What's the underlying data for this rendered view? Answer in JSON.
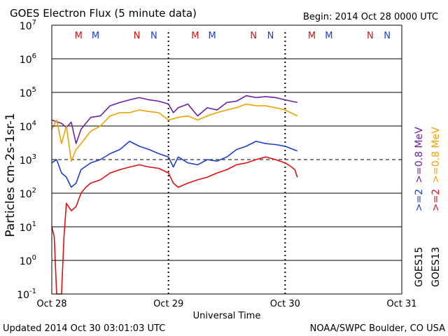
{
  "header": {
    "title": "GOES Electron Flux (5 minute data)",
    "begin": "Begin: 2014 Oct 28 0000 UTC"
  },
  "footer": {
    "updated": "Updated 2014 Oct 30 03:01:03 UTC",
    "credit": "NOAA/SWPC Boulder, CO USA"
  },
  "chart_data": {
    "type": "line",
    "title": "GOES Electron Flux (5 minute data)",
    "xlabel": "Universal Time",
    "ylabel": "Particles cm-2s-1sr-1",
    "yscale": "log",
    "ylim": [
      0.1,
      10000000
    ],
    "xlim": [
      "2014-10-28 00:00",
      "2014-10-31 00:00"
    ],
    "x_ticks": [
      "Oct 28",
      "Oct 29",
      "Oct 30",
      "Oct 31"
    ],
    "y_ticks": [
      "10-1",
      "100",
      "101",
      "102",
      "103",
      "104",
      "105",
      "106",
      "107"
    ],
    "grid": true,
    "threshold_line": 1000,
    "legend": {
      "placement": "right, vertical",
      "columns": [
        {
          "sat": "GOES15",
          "entries": [
            {
              "label": ">=2",
              "color": "#1a3fcc"
            },
            {
              "label": ">=0.8 MeV",
              "color": "#6a1fa5"
            }
          ]
        },
        {
          "sat": "GOES13",
          "entries": [
            {
              "label": ">=2",
              "color": "#e01010"
            },
            {
              "label": ">=0.8 MeV",
              "color": "#f0a000"
            }
          ]
        }
      ]
    },
    "mn_markers": [
      {
        "label": "M",
        "color": "#e01010",
        "time": "2014-10-28 05:30"
      },
      {
        "label": "M",
        "color": "#1a3fcc",
        "time": "2014-10-28 09:00"
      },
      {
        "label": "N",
        "color": "#e01010",
        "time": "2014-10-28 17:30"
      },
      {
        "label": "N",
        "color": "#1a3fcc",
        "time": "2014-10-28 21:00"
      },
      {
        "label": "M",
        "color": "#e01010",
        "time": "2014-10-29 05:30"
      },
      {
        "label": "M",
        "color": "#1a3fcc",
        "time": "2014-10-29 09:00"
      },
      {
        "label": "N",
        "color": "#e01010",
        "time": "2014-10-29 17:30"
      },
      {
        "label": "N",
        "color": "#1a3fcc",
        "time": "2014-10-29 21:00"
      },
      {
        "label": "M",
        "color": "#e01010",
        "time": "2014-10-30 05:30"
      },
      {
        "label": "M",
        "color": "#1a3fcc",
        "time": "2014-10-30 09:00"
      },
      {
        "label": "N",
        "color": "#e01010",
        "time": "2014-10-30 17:30"
      },
      {
        "label": "N",
        "color": "#1a3fcc",
        "time": "2014-10-30 21:00"
      }
    ],
    "series": [
      {
        "name": "GOES15 >=0.8 MeV",
        "color": "#6a1fa5",
        "x": [
          "2014-10-28 00:00",
          "2014-10-28 02:00",
          "2014-10-28 03:00",
          "2014-10-28 04:00",
          "2014-10-28 05:00",
          "2014-10-28 06:00",
          "2014-10-28 08:00",
          "2014-10-28 10:00",
          "2014-10-28 12:00",
          "2014-10-28 14:00",
          "2014-10-28 16:00",
          "2014-10-28 18:00",
          "2014-10-28 20:00",
          "2014-10-28 22:00",
          "2014-10-29 00:00",
          "2014-10-29 01:00",
          "2014-10-29 02:00",
          "2014-10-29 04:00",
          "2014-10-29 06:00",
          "2014-10-29 08:00",
          "2014-10-29 10:00",
          "2014-10-29 12:00",
          "2014-10-29 14:00",
          "2014-10-29 16:00",
          "2014-10-29 18:00",
          "2014-10-29 20:00",
          "2014-10-29 22:00",
          "2014-10-30 00:00",
          "2014-10-30 02:30"
        ],
        "y": [
          15000,
          12000,
          9000,
          13000,
          3000,
          8000,
          18000,
          20000,
          40000,
          50000,
          60000,
          70000,
          60000,
          55000,
          45000,
          25000,
          35000,
          45000,
          20000,
          35000,
          30000,
          50000,
          55000,
          80000,
          70000,
          75000,
          70000,
          60000,
          50000
        ]
      },
      {
        "name": "GOES13 >=0.8 MeV",
        "color": "#f0a000",
        "x": [
          "2014-10-28 00:00",
          "2014-10-28 01:00",
          "2014-10-28 02:00",
          "2014-10-28 03:00",
          "2014-10-28 04:00",
          "2014-10-28 05:00",
          "2014-10-28 06:00",
          "2014-10-28 08:00",
          "2014-10-28 10:00",
          "2014-10-28 12:00",
          "2014-10-28 14:00",
          "2014-10-28 16:00",
          "2014-10-28 18:00",
          "2014-10-28 20:00",
          "2014-10-28 22:00",
          "2014-10-29 00:00",
          "2014-10-29 02:00",
          "2014-10-29 04:00",
          "2014-10-29 06:00",
          "2014-10-29 08:00",
          "2014-10-29 10:00",
          "2014-10-29 12:00",
          "2014-10-29 14:00",
          "2014-10-29 16:00",
          "2014-10-29 18:00",
          "2014-10-29 20:00",
          "2014-10-29 22:00",
          "2014-10-30 00:00",
          "2014-10-30 02:30"
        ],
        "y": [
          8000,
          15000,
          3000,
          10000,
          900,
          2000,
          3000,
          7000,
          10000,
          20000,
          25000,
          25000,
          30000,
          27000,
          25000,
          15000,
          18000,
          20000,
          15000,
          20000,
          25000,
          30000,
          35000,
          45000,
          40000,
          40000,
          35000,
          30000,
          20000
        ]
      },
      {
        "name": "GOES15 >=2 MeV",
        "color": "#1a3fcc",
        "x": [
          "2014-10-28 00:00",
          "2014-10-28 01:00",
          "2014-10-28 02:00",
          "2014-10-28 03:00",
          "2014-10-28 04:00",
          "2014-10-28 05:00",
          "2014-10-28 06:00",
          "2014-10-28 08:00",
          "2014-10-28 10:00",
          "2014-10-28 12:00",
          "2014-10-28 14:00",
          "2014-10-28 16:00",
          "2014-10-28 18:00",
          "2014-10-28 20:00",
          "2014-10-28 22:00",
          "2014-10-29 00:00",
          "2014-10-29 01:00",
          "2014-10-29 02:00",
          "2014-10-29 04:00",
          "2014-10-29 06:00",
          "2014-10-29 08:00",
          "2014-10-29 10:00",
          "2014-10-29 12:00",
          "2014-10-29 14:00",
          "2014-10-29 16:00",
          "2014-10-29 18:00",
          "2014-10-29 20:00",
          "2014-10-29 22:00",
          "2014-10-30 00:00",
          "2014-10-30 02:30"
        ],
        "y": [
          800,
          1000,
          400,
          300,
          150,
          200,
          500,
          800,
          1000,
          1500,
          2000,
          3500,
          2500,
          2000,
          1500,
          1200,
          600,
          1200,
          800,
          700,
          1000,
          900,
          1200,
          2000,
          2500,
          3500,
          3000,
          2800,
          2500,
          1800
        ]
      },
      {
        "name": "GOES13 >=2 MeV",
        "color": "#e01010",
        "x": [
          "2014-10-28 00:00",
          "2014-10-28 00:30",
          "2014-10-28 01:00",
          "2014-10-28 01:30",
          "2014-10-28 02:00",
          "2014-10-28 02:30",
          "2014-10-28 03:00",
          "2014-10-28 04:00",
          "2014-10-28 05:00",
          "2014-10-28 06:00",
          "2014-10-28 07:00",
          "2014-10-28 08:00",
          "2014-10-28 10:00",
          "2014-10-28 12:00",
          "2014-10-28 14:00",
          "2014-10-28 16:00",
          "2014-10-28 18:00",
          "2014-10-28 20:00",
          "2014-10-28 22:00",
          "2014-10-29 00:00",
          "2014-10-29 01:00",
          "2014-10-29 02:00",
          "2014-10-29 04:00",
          "2014-10-29 06:00",
          "2014-10-29 08:00",
          "2014-10-29 10:00",
          "2014-10-29 12:00",
          "2014-10-29 14:00",
          "2014-10-29 16:00",
          "2014-10-29 18:00",
          "2014-10-29 20:00",
          "2014-10-29 22:00",
          "2014-10-30 00:00",
          "2014-10-30 01:00",
          "2014-10-30 02:00",
          "2014-10-30 02:30"
        ],
        "y": [
          10,
          5,
          0.1,
          0.1,
          0.1,
          5,
          50,
          30,
          40,
          100,
          150,
          200,
          250,
          400,
          500,
          600,
          700,
          600,
          550,
          400,
          200,
          150,
          200,
          250,
          300,
          400,
          500,
          700,
          800,
          1000,
          1200,
          1000,
          800,
          650,
          500,
          300
        ]
      }
    ]
  }
}
